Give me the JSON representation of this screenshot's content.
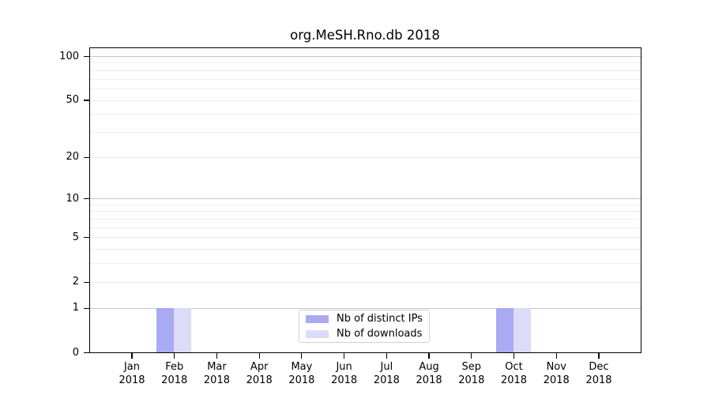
{
  "chart_data": {
    "type": "bar",
    "title": "org.MeSH.Rno.db 2018",
    "y_scale": "log1p",
    "ylim": [
      0,
      113
    ],
    "grid": true,
    "legend_position": "bottom-center-inside",
    "y_tick_labels": [
      100,
      50,
      20,
      10,
      5,
      2,
      1,
      0
    ],
    "gridlines": {
      "major": [
        1,
        10,
        100
      ],
      "minor": [
        2,
        3,
        4,
        5,
        6,
        7,
        8,
        9,
        20,
        30,
        40,
        50,
        60,
        70,
        80,
        90
      ]
    },
    "x_labels": [
      {
        "month": "Jan",
        "year": "2018"
      },
      {
        "month": "Feb",
        "year": "2018"
      },
      {
        "month": "Mar",
        "year": "2018"
      },
      {
        "month": "Apr",
        "year": "2018"
      },
      {
        "month": "May",
        "year": "2018"
      },
      {
        "month": "Jun",
        "year": "2018"
      },
      {
        "month": "Jul",
        "year": "2018"
      },
      {
        "month": "Aug",
        "year": "2018"
      },
      {
        "month": "Sep",
        "year": "2018"
      },
      {
        "month": "Oct",
        "year": "2018"
      },
      {
        "month": "Nov",
        "year": "2018"
      },
      {
        "month": "Dec",
        "year": "2018"
      }
    ],
    "series": [
      {
        "name": "Nb of distinct IPs",
        "color": "#aaaaf2",
        "values": [
          0,
          1,
          0,
          0,
          0,
          0,
          0,
          0,
          0,
          1,
          0,
          0
        ]
      },
      {
        "name": "Nb of downloads",
        "color": "#dcdcf8",
        "values": [
          0,
          1,
          0,
          0,
          0,
          0,
          0,
          0,
          0,
          1,
          0,
          0
        ]
      }
    ]
  },
  "colors": {
    "axis": "#000000",
    "grid_major": "#c6c6c6",
    "grid_minor": "#ececec",
    "legend_border": "#d2d2d2",
    "background": "#ffffff",
    "text": "#000000"
  }
}
